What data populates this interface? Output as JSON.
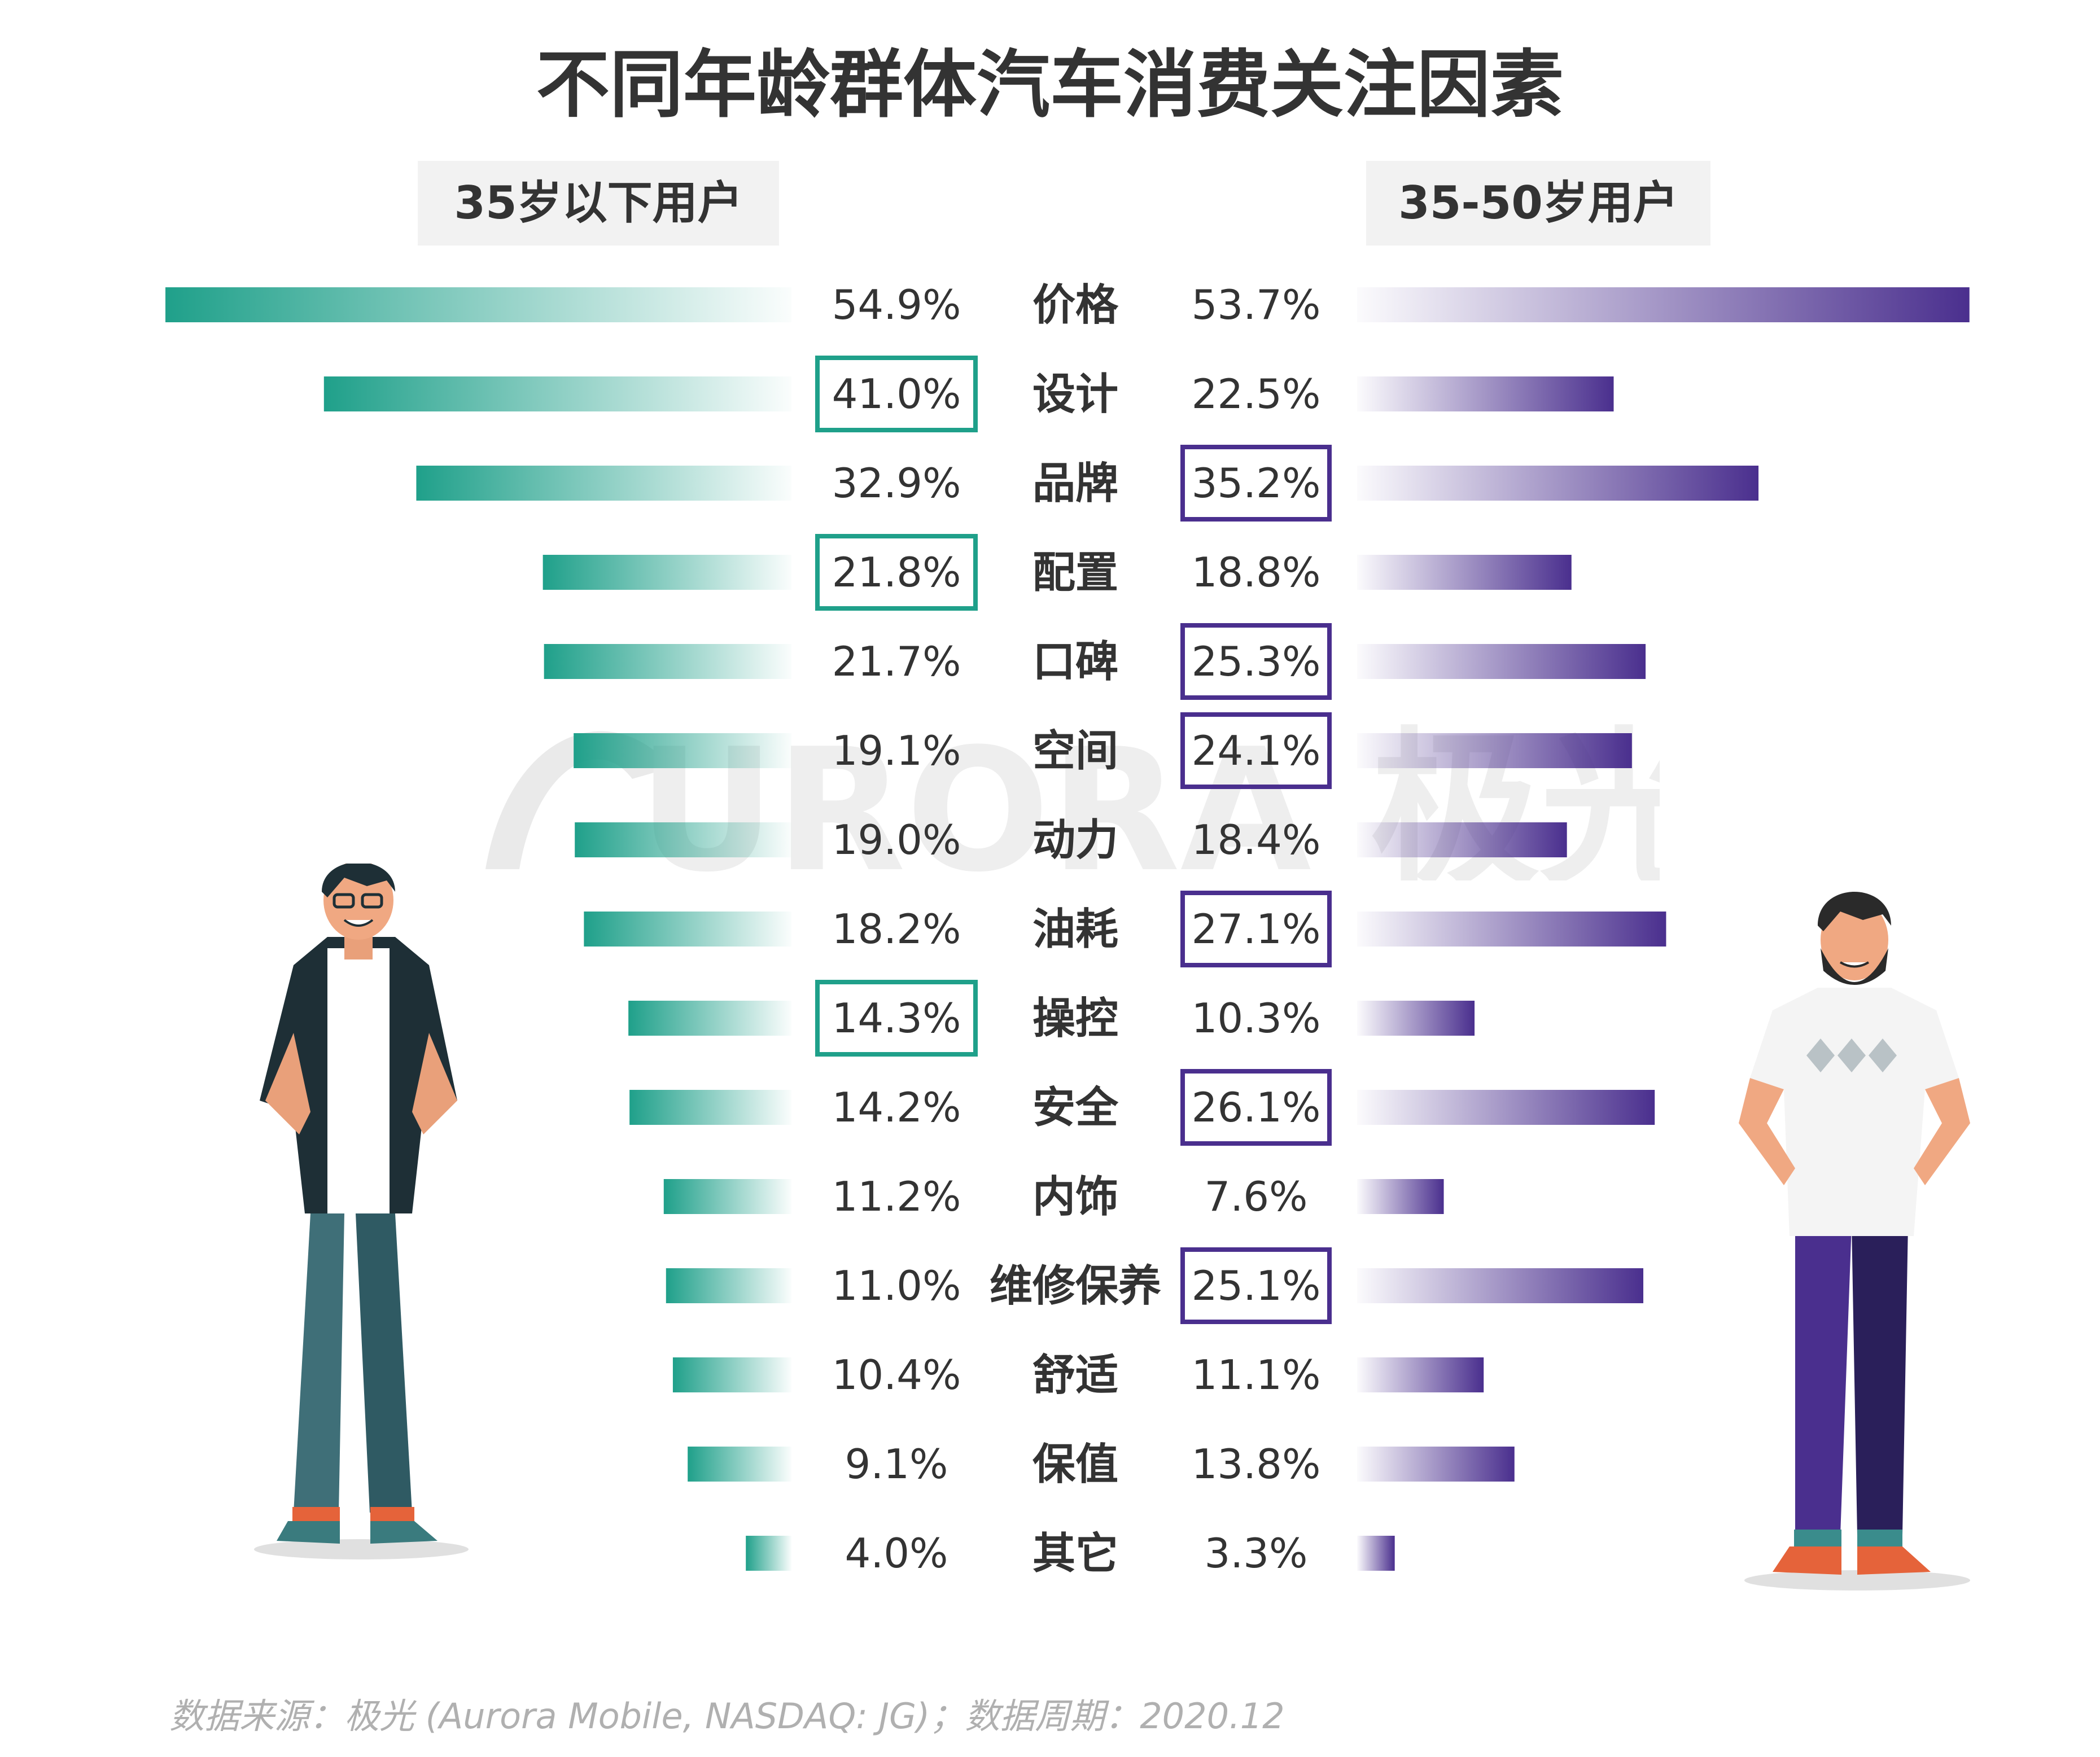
{
  "title": "不同年龄群体汽车消费关注因素",
  "groups": {
    "left": "35岁以下用户",
    "right": "35-50岁用户"
  },
  "watermark_text": "URORA 极光",
  "source": "数据来源：极光 (Aurora Mobile, NASDAQ: JG)；数据周期：2020.12",
  "colors": {
    "left_accent": "#1fa08a",
    "right_accent": "#4a2f8e",
    "text": "#333333"
  },
  "chart_data": {
    "type": "bar",
    "orientation": "horizontal-diverging",
    "title": "不同年龄群体汽车消费关注因素",
    "categories": [
      "价格",
      "设计",
      "品牌",
      "配置",
      "口碑",
      "空间",
      "动力",
      "油耗",
      "操控",
      "安全",
      "内饰",
      "维修保养",
      "舒适",
      "保值",
      "其它"
    ],
    "series": [
      {
        "name": "35岁以下用户",
        "values": [
          54.9,
          41.0,
          32.9,
          21.8,
          21.7,
          19.1,
          19.0,
          18.2,
          14.3,
          14.2,
          11.2,
          11.0,
          10.4,
          9.1,
          4.0
        ],
        "labels": [
          "54.9%",
          "41.0%",
          "32.9%",
          "21.8%",
          "21.7%",
          "19.1%",
          "19.0%",
          "18.2%",
          "14.3%",
          "14.2%",
          "11.2%",
          "11.0%",
          "10.4%",
          "9.1%",
          "4.0%"
        ],
        "highlighted": [
          false,
          true,
          false,
          true,
          false,
          false,
          false,
          false,
          true,
          false,
          false,
          false,
          false,
          false,
          false
        ]
      },
      {
        "name": "35-50岁用户",
        "values": [
          53.7,
          22.5,
          35.2,
          18.8,
          25.3,
          24.1,
          18.4,
          27.1,
          10.3,
          26.1,
          7.6,
          25.1,
          11.1,
          13.8,
          3.3
        ],
        "labels": [
          "53.7%",
          "22.5%",
          "35.2%",
          "18.8%",
          "25.3%",
          "24.1%",
          "18.4%",
          "27.1%",
          "10.3%",
          "26.1%",
          "7.6%",
          "25.1%",
          "11.1%",
          "13.8%",
          "3.3%"
        ],
        "highlighted": [
          false,
          false,
          true,
          false,
          true,
          true,
          false,
          true,
          false,
          true,
          false,
          true,
          false,
          false,
          false
        ]
      }
    ],
    "unit": "%",
    "xlim": [
      0,
      60
    ]
  }
}
